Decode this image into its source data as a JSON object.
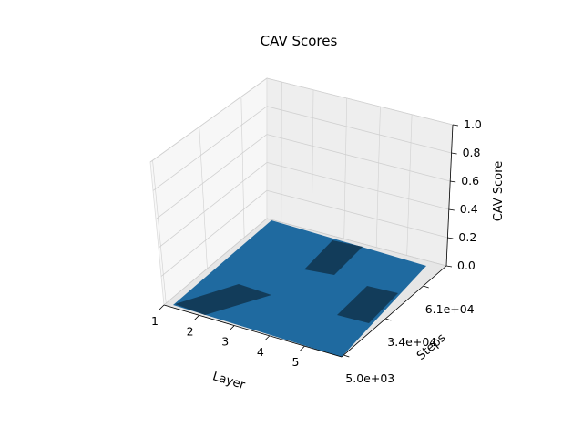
{
  "chart_data": {
    "type": "3d-bar",
    "title": "CAV Scores",
    "xlabel": "Layer",
    "ylabel": "Steps",
    "zlabel": "CAV Score",
    "x_categories": [
      "1",
      "2",
      "3",
      "4",
      "5"
    ],
    "y_tick_labels": [
      "5.0e+03",
      "3.4e+04",
      "6.1e+04"
    ],
    "z_ticks": [
      "0.0",
      "0.2",
      "0.4",
      "0.6",
      "0.8",
      "1.0"
    ],
    "zlim": [
      0,
      1
    ],
    "grid": true,
    "colors": {
      "bar": "#1f77b4",
      "bar_shaded": "#123c5a",
      "pane": "#f2f2f2",
      "grid": "#d0d0d0"
    }
  }
}
